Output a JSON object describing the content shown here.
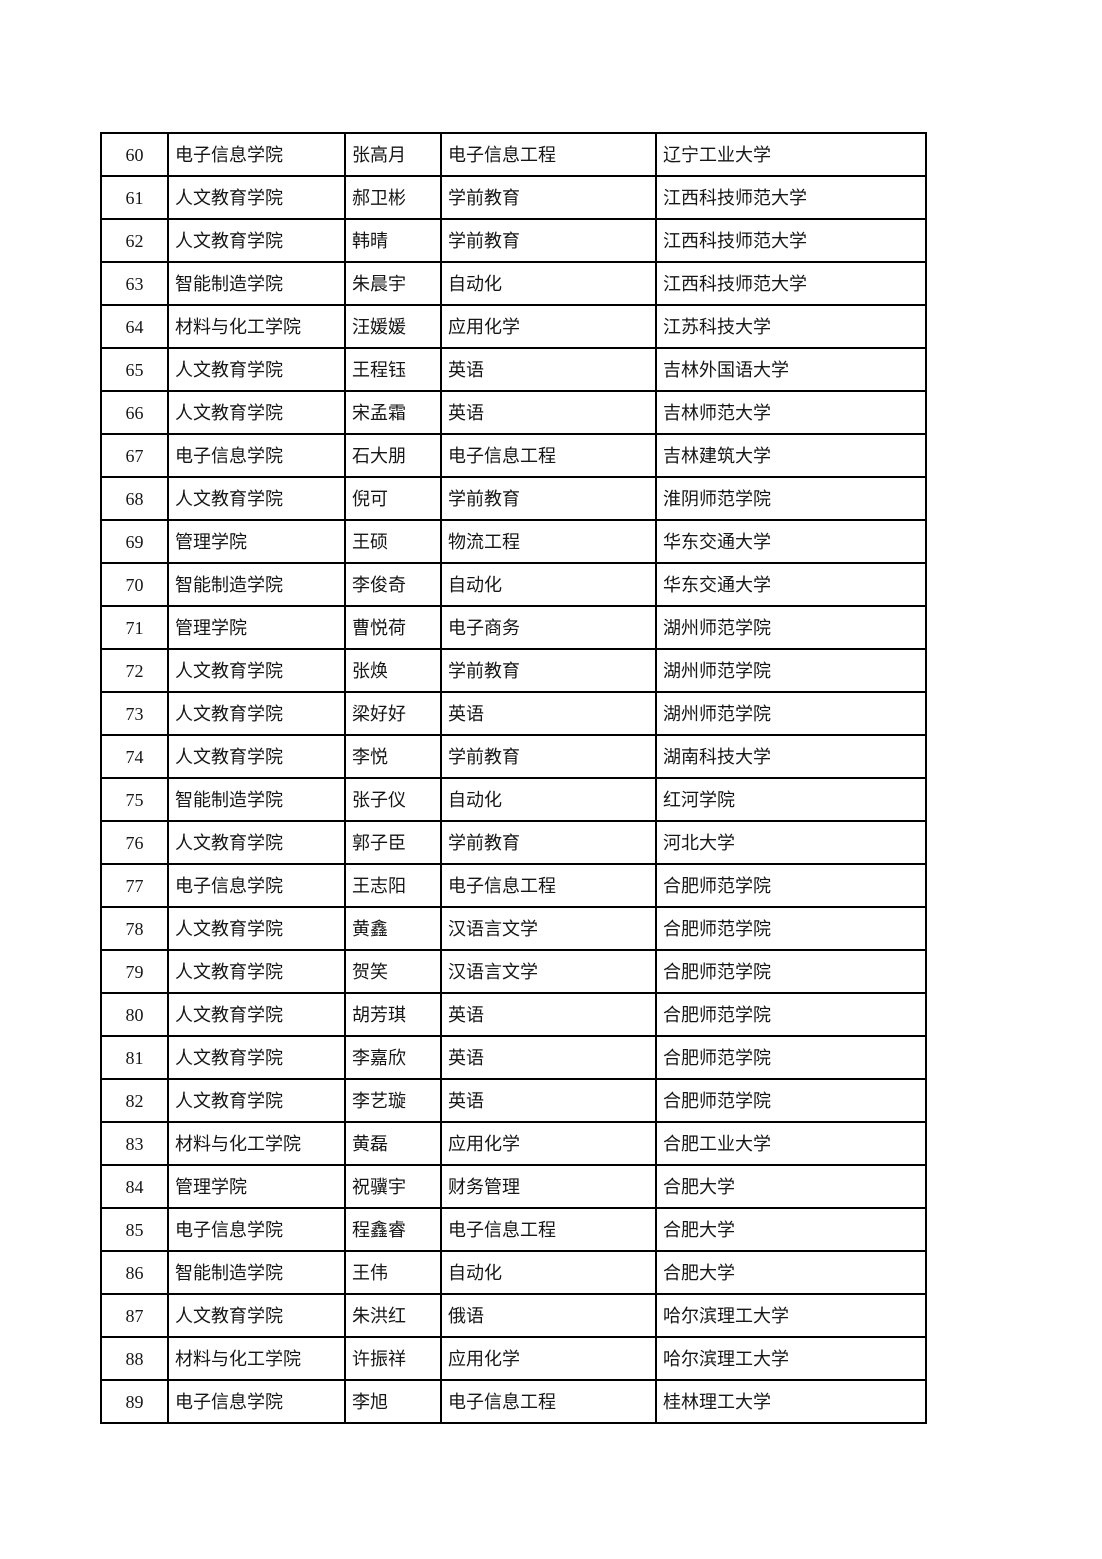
{
  "table": {
    "rows": [
      {
        "no": "60",
        "college": "电子信息学院",
        "name": "张高月",
        "major": "电子信息工程",
        "university": "辽宁工业大学"
      },
      {
        "no": "61",
        "college": "人文教育学院",
        "name": "郝卫彬",
        "major": "学前教育",
        "university": "江西科技师范大学"
      },
      {
        "no": "62",
        "college": "人文教育学院",
        "name": "韩晴",
        "major": "学前教育",
        "university": "江西科技师范大学"
      },
      {
        "no": "63",
        "college": "智能制造学院",
        "name": "朱晨宇",
        "major": "自动化",
        "university": "江西科技师范大学"
      },
      {
        "no": "64",
        "college": "材料与化工学院",
        "name": "汪媛媛",
        "major": "应用化学",
        "university": "江苏科技大学"
      },
      {
        "no": "65",
        "college": "人文教育学院",
        "name": "王程钰",
        "major": "英语",
        "university": "吉林外国语大学"
      },
      {
        "no": "66",
        "college": "人文教育学院",
        "name": "宋孟霜",
        "major": "英语",
        "university": "吉林师范大学"
      },
      {
        "no": "67",
        "college": "电子信息学院",
        "name": "石大朋",
        "major": "电子信息工程",
        "university": "吉林建筑大学"
      },
      {
        "no": "68",
        "college": "人文教育学院",
        "name": "倪可",
        "major": "学前教育",
        "university": "淮阴师范学院"
      },
      {
        "no": "69",
        "college": "管理学院",
        "name": "王硕",
        "major": "物流工程",
        "university": "华东交通大学"
      },
      {
        "no": "70",
        "college": "智能制造学院",
        "name": "李俊奇",
        "major": "自动化",
        "university": "华东交通大学"
      },
      {
        "no": "71",
        "college": "管理学院",
        "name": "曹悦荷",
        "major": "电子商务",
        "university": "湖州师范学院"
      },
      {
        "no": "72",
        "college": "人文教育学院",
        "name": "张焕",
        "major": "学前教育",
        "university": "湖州师范学院"
      },
      {
        "no": "73",
        "college": "人文教育学院",
        "name": "梁好好",
        "major": "英语",
        "university": "湖州师范学院"
      },
      {
        "no": "74",
        "college": "人文教育学院",
        "name": "李悦",
        "major": "学前教育",
        "university": "湖南科技大学"
      },
      {
        "no": "75",
        "college": "智能制造学院",
        "name": "张子仪",
        "major": "自动化",
        "university": "红河学院"
      },
      {
        "no": "76",
        "college": "人文教育学院",
        "name": "郭子臣",
        "major": "学前教育",
        "university": "河北大学"
      },
      {
        "no": "77",
        "college": "电子信息学院",
        "name": "王志阳",
        "major": "电子信息工程",
        "university": "合肥师范学院"
      },
      {
        "no": "78",
        "college": "人文教育学院",
        "name": "黄鑫",
        "major": "汉语言文学",
        "university": "合肥师范学院"
      },
      {
        "no": "79",
        "college": "人文教育学院",
        "name": "贺笑",
        "major": "汉语言文学",
        "university": "合肥师范学院"
      },
      {
        "no": "80",
        "college": "人文教育学院",
        "name": "胡芳琪",
        "major": "英语",
        "university": "合肥师范学院"
      },
      {
        "no": "81",
        "college": "人文教育学院",
        "name": "李嘉欣",
        "major": "英语",
        "university": "合肥师范学院"
      },
      {
        "no": "82",
        "college": "人文教育学院",
        "name": "李艺璇",
        "major": "英语",
        "university": "合肥师范学院"
      },
      {
        "no": "83",
        "college": "材料与化工学院",
        "name": "黄磊",
        "major": "应用化学",
        "university": "合肥工业大学"
      },
      {
        "no": "84",
        "college": "管理学院",
        "name": "祝骥宇",
        "major": "财务管理",
        "university": "合肥大学"
      },
      {
        "no": "85",
        "college": "电子信息学院",
        "name": "程鑫睿",
        "major": "电子信息工程",
        "university": "合肥大学"
      },
      {
        "no": "86",
        "college": "智能制造学院",
        "name": "王伟",
        "major": "自动化",
        "university": "合肥大学"
      },
      {
        "no": "87",
        "college": "人文教育学院",
        "name": "朱洪红",
        "major": "俄语",
        "university": "哈尔滨理工大学"
      },
      {
        "no": "88",
        "college": "材料与化工学院",
        "name": "许振祥",
        "major": "应用化学",
        "university": "哈尔滨理工大学"
      },
      {
        "no": "89",
        "college": "电子信息学院",
        "name": "李旭",
        "major": "电子信息工程",
        "university": "桂林理工大学"
      }
    ]
  }
}
